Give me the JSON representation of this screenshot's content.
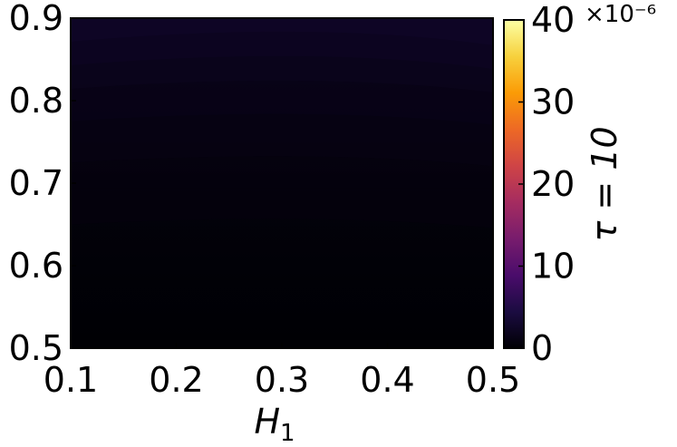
{
  "chart_data": {
    "type": "heatmap",
    "xlabel": "H",
    "xlabel_sub": "1",
    "ylabel": "",
    "x_ticks": [
      "0.1",
      "0.2",
      "0.3",
      "0.4",
      "0.5"
    ],
    "y_ticks": [
      "0.5",
      "0.6",
      "0.7",
      "0.8",
      "0.9"
    ],
    "xlim": [
      0.1,
      0.5
    ],
    "ylim": [
      0.5,
      0.9
    ],
    "colorbar": {
      "label": "τ = 10",
      "ticks": [
        "0",
        "10",
        "20",
        "30",
        "40"
      ],
      "range": [
        0,
        40
      ],
      "exponent_label": "×10⁻⁶",
      "colormap": "inferno",
      "colors": [
        "#000004",
        "#1b0c41",
        "#4a0c6b",
        "#781c6d",
        "#a52c60",
        "#cf4446",
        "#ed6925",
        "#fb9b06",
        "#f7d13d",
        "#fcffa4"
      ]
    },
    "grid": false,
    "note_values": "Field is near zero over whole domain; rises slightly (~2–3 ×10⁻⁶) toward top edge (y≈0.9).",
    "value_samples": [
      {
        "y": 0.5,
        "value": 0.0
      },
      {
        "y": 0.6,
        "value": 0.2
      },
      {
        "y": 0.7,
        "value": 0.6
      },
      {
        "y": 0.8,
        "value": 1.4
      },
      {
        "y": 0.9,
        "value": 2.8
      }
    ]
  }
}
